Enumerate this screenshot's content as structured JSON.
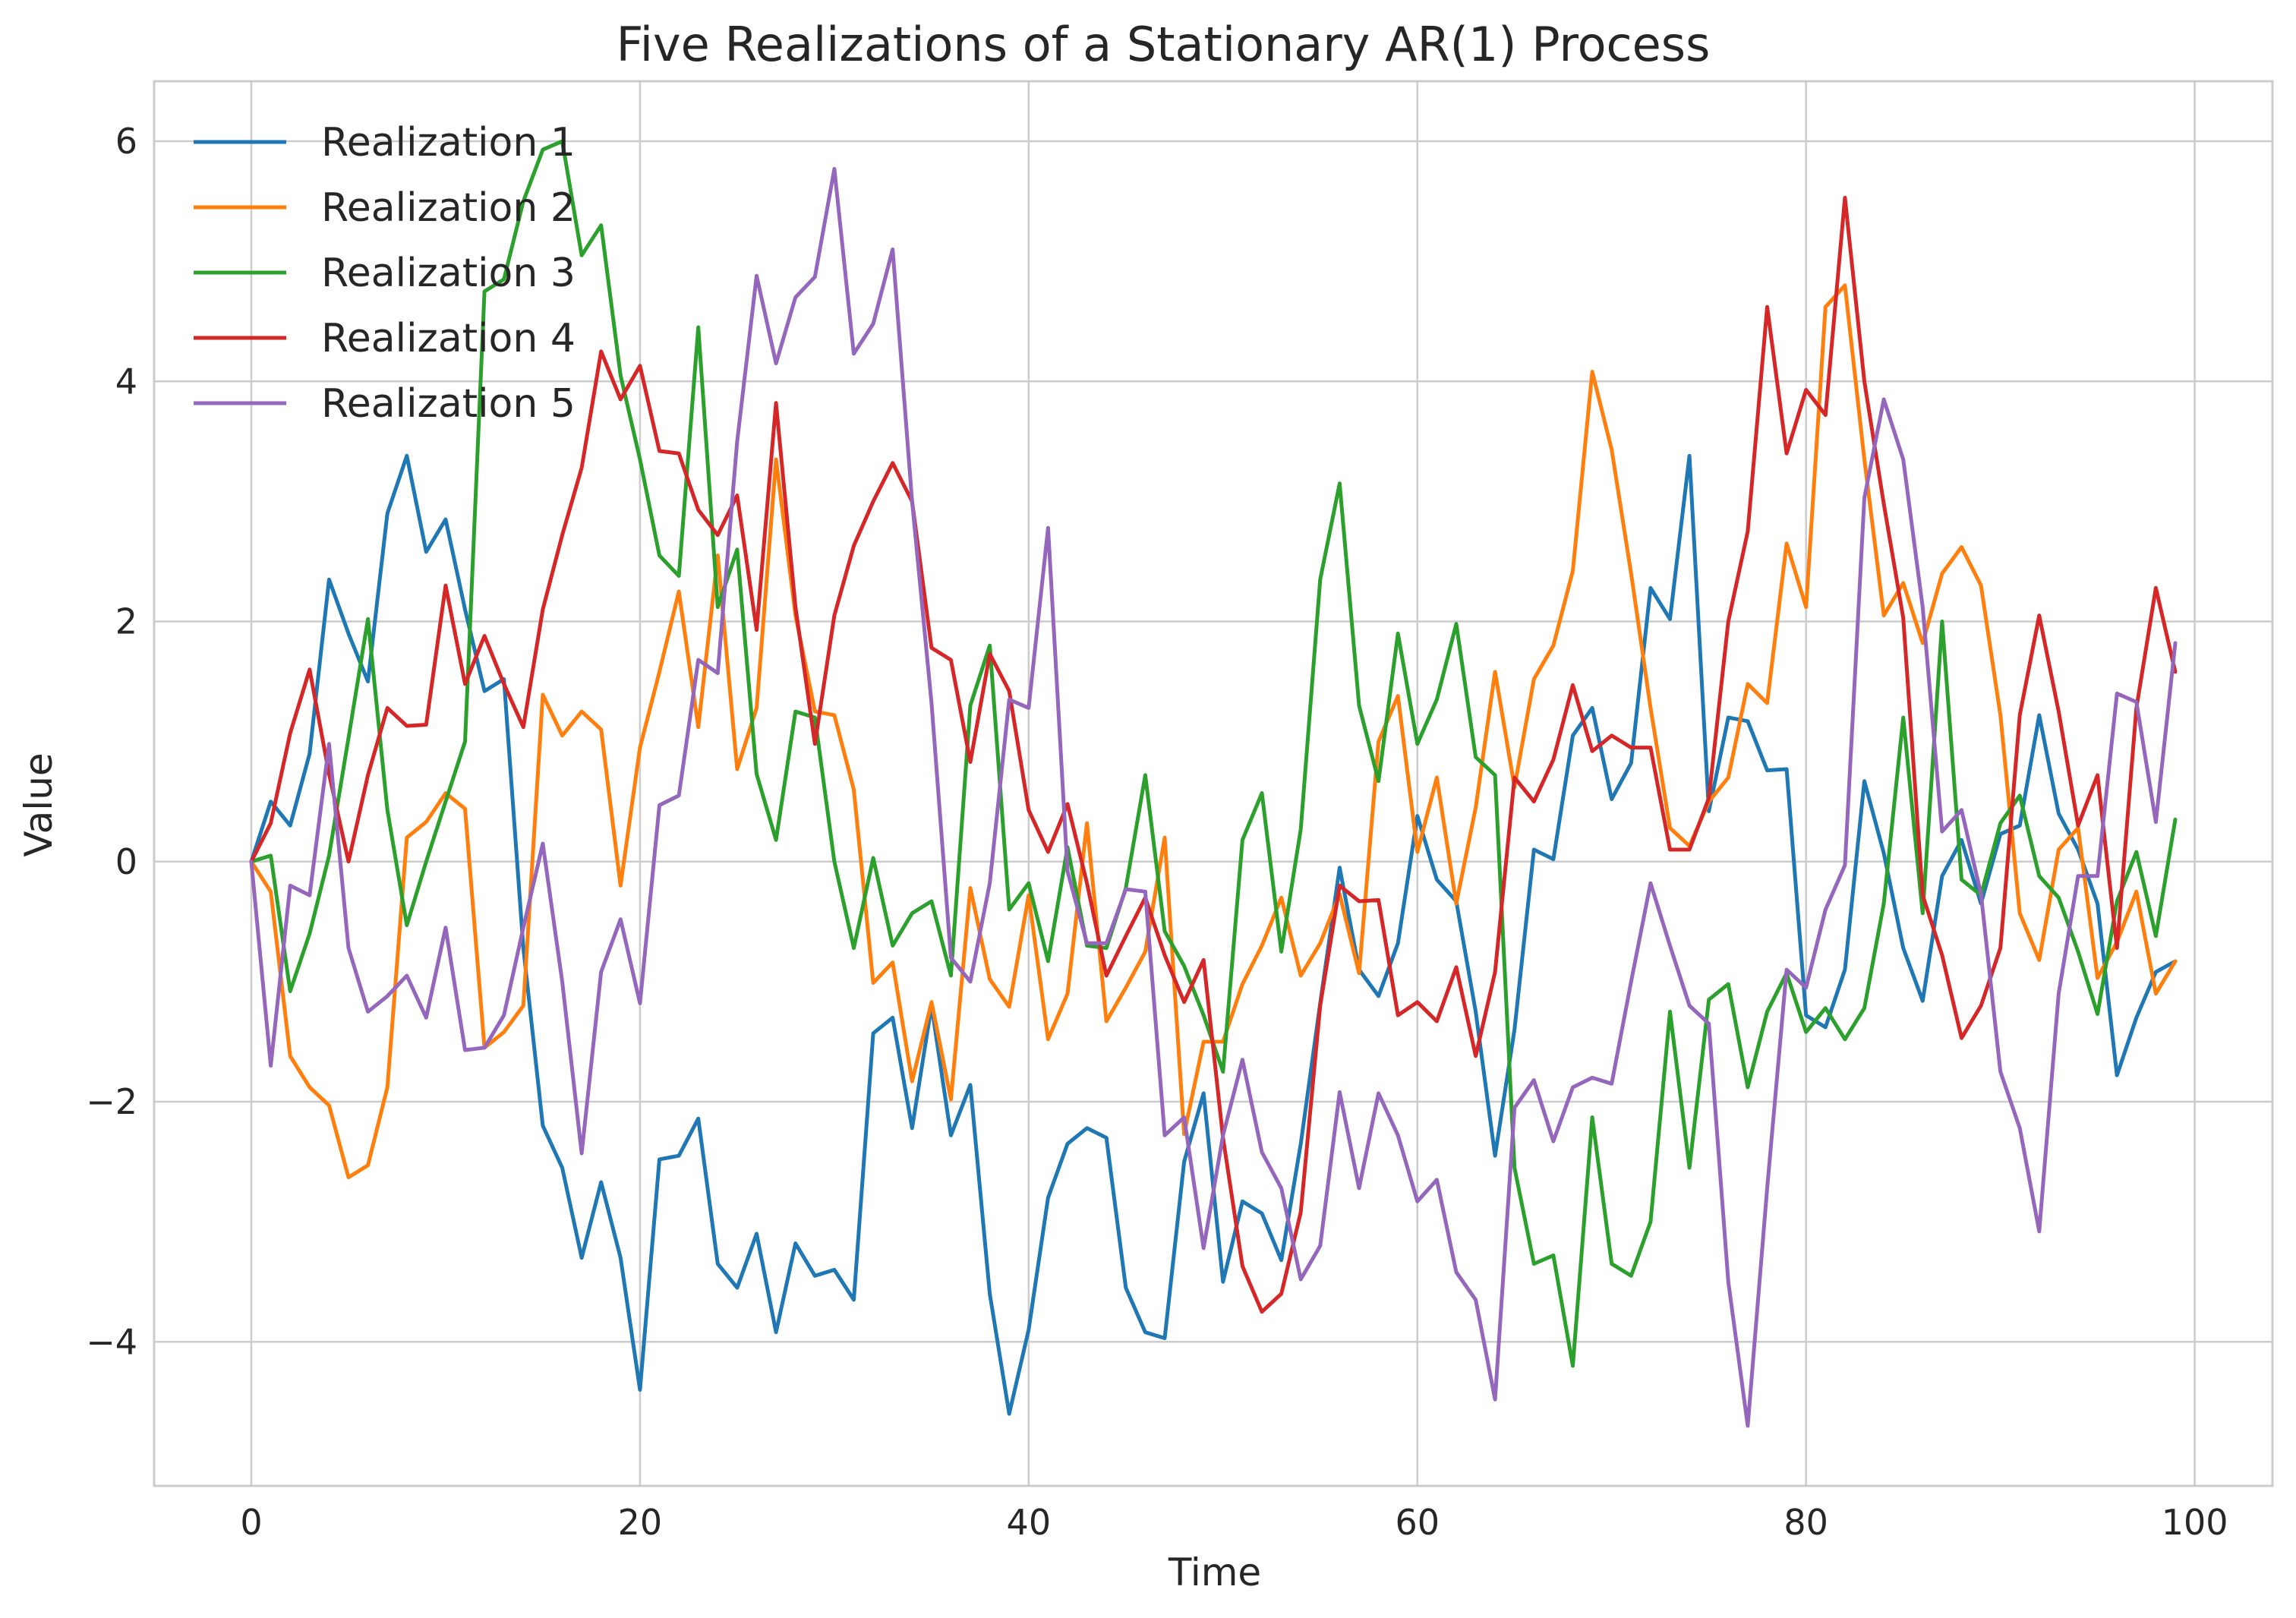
{
  "chart_data": {
    "type": "line",
    "title": "Five Realizations of a Stationary AR(1) Process",
    "xlabel": "Time",
    "ylabel": "Value",
    "xlim": [
      -5,
      104
    ],
    "ylim": [
      -5.2,
      6.5
    ],
    "xticks": [
      0,
      20,
      40,
      60,
      80,
      100
    ],
    "xtick_labels": [
      "0",
      "20",
      "40",
      "60",
      "80",
      "100"
    ],
    "yticks": [
      -4,
      -2,
      0,
      2,
      4,
      6
    ],
    "ytick_labels": [
      "−4",
      "−2",
      "0",
      "2",
      "4",
      "6"
    ],
    "grid": true,
    "legend_position": "top-left",
    "x": [
      0,
      1,
      2,
      3,
      4,
      5,
      6,
      7,
      8,
      9,
      10,
      11,
      12,
      13,
      14,
      15,
      16,
      17,
      18,
      19,
      20,
      21,
      22,
      23,
      24,
      25,
      26,
      27,
      28,
      29,
      30,
      31,
      32,
      33,
      34,
      35,
      36,
      37,
      38,
      39,
      40,
      41,
      42,
      43,
      44,
      45,
      46,
      47,
      48,
      49,
      50,
      51,
      52,
      53,
      54,
      55,
      56,
      57,
      58,
      59,
      60,
      61,
      62,
      63,
      64,
      65,
      66,
      67,
      68,
      69,
      70,
      71,
      72,
      73,
      74,
      75,
      76,
      77,
      78,
      79,
      80,
      81,
      82,
      83,
      84,
      85,
      86,
      87,
      88,
      89,
      90,
      91,
      92,
      93,
      94,
      95,
      96,
      97,
      98,
      99
    ],
    "series": [
      {
        "name": "Realization 1",
        "color": "#1f77b4",
        "values": [
          0,
          0.5,
          0.3,
          0.9,
          2.35,
          1.9,
          1.5,
          2.9,
          3.38,
          2.58,
          2.85,
          2.1,
          1.42,
          1.52,
          -0.72,
          -2.2,
          -2.55,
          -3.3,
          -2.67,
          -3.3,
          -4.4,
          -2.48,
          -2.45,
          -2.14,
          -3.35,
          -3.55,
          -3.1,
          -3.92,
          -3.18,
          -3.45,
          -3.4,
          -3.65,
          -1.43,
          -1.3,
          -2.22,
          -1.2,
          -2.28,
          -1.86,
          -3.6,
          -4.6,
          -3.9,
          -2.8,
          -2.35,
          -2.22,
          -2.3,
          -3.55,
          -3.92,
          -3.97,
          -2.5,
          -1.93,
          -3.5,
          -2.83,
          -2.93,
          -3.32,
          -2.35,
          -1.18,
          -0.05,
          -0.9,
          -1.12,
          -0.68,
          0.38,
          -0.15,
          -0.33,
          -1.25,
          -2.45,
          -1.4,
          0.1,
          0.02,
          1.05,
          1.28,
          0.52,
          0.82,
          2.28,
          2.02,
          3.38,
          0.42,
          1.2,
          1.17,
          0.76,
          0.77,
          -1.28,
          -1.38,
          -0.9,
          0.67,
          0.07,
          -0.72,
          -1.16,
          -0.12,
          0.18,
          -0.35,
          0.23,
          0.3,
          1.22,
          0.4,
          0.1,
          -0.35,
          -1.78,
          -1.3,
          -0.92,
          -0.83
        ]
      },
      {
        "name": "Realization 2",
        "color": "#ff7f0e",
        "values": [
          0,
          -0.25,
          -1.62,
          -1.88,
          -2.03,
          -2.63,
          -2.53,
          -1.88,
          0.2,
          0.33,
          0.57,
          0.44,
          -1.55,
          -1.42,
          -1.2,
          1.39,
          1.05,
          1.25,
          1.1,
          -0.2,
          0.95,
          1.58,
          2.25,
          1.12,
          2.55,
          0.77,
          1.28,
          3.35,
          2.05,
          1.25,
          1.22,
          0.6,
          -1.01,
          -0.84,
          -1.83,
          -1.17,
          -1.98,
          -0.22,
          -0.98,
          -1.21,
          -0.28,
          -1.48,
          -1.1,
          0.32,
          -1.33,
          -1.05,
          -0.75,
          0.2,
          -2.27,
          -1.5,
          -1.5,
          -1.02,
          -0.7,
          -0.3,
          -0.95,
          -0.68,
          -0.27,
          -0.93,
          1.0,
          1.38,
          0.08,
          0.7,
          -0.35,
          0.45,
          1.58,
          0.62,
          1.52,
          1.8,
          2.42,
          4.08,
          3.43,
          2.4,
          1.28,
          0.28,
          0.13,
          0.5,
          0.7,
          1.48,
          1.32,
          2.65,
          2.12,
          4.62,
          4.8,
          3.35,
          2.05,
          2.32,
          1.82,
          2.4,
          2.62,
          2.3,
          1.22,
          -0.43,
          -0.82,
          0.1,
          0.28,
          -0.97,
          -0.67,
          -0.25,
          -1.1,
          -0.83
        ]
      },
      {
        "name": "Realization 3",
        "color": "#2ca02c",
        "values": [
          0,
          0.05,
          -1.08,
          -0.6,
          0.05,
          1.03,
          2.02,
          0.43,
          -0.53,
          0.0,
          0.5,
          1.0,
          4.75,
          4.85,
          5.5,
          5.93,
          6.0,
          5.05,
          5.3,
          4.05,
          3.35,
          2.55,
          2.38,
          4.45,
          2.12,
          2.6,
          0.73,
          0.18,
          1.25,
          1.2,
          0.0,
          -0.72,
          0.03,
          -0.7,
          -0.43,
          -0.33,
          -0.95,
          1.3,
          1.8,
          -0.4,
          -0.18,
          -0.83,
          0.12,
          -0.7,
          -0.72,
          -0.22,
          0.72,
          -0.58,
          -0.87,
          -1.28,
          -1.75,
          0.18,
          0.57,
          -0.75,
          0.27,
          2.35,
          3.15,
          1.3,
          0.67,
          1.9,
          0.98,
          1.35,
          1.98,
          0.87,
          0.72,
          -2.55,
          -3.35,
          -3.28,
          -4.2,
          -2.13,
          -3.35,
          -3.45,
          -3.0,
          -1.25,
          -2.55,
          -1.15,
          -1.02,
          -1.88,
          -1.25,
          -0.93,
          -1.42,
          -1.22,
          -1.48,
          -1.22,
          -0.35,
          1.2,
          -0.43,
          2.0,
          -0.15,
          -0.28,
          0.32,
          0.55,
          -0.12,
          -0.3,
          -0.75,
          -1.27,
          -0.33,
          0.08,
          -0.62,
          0.35
        ]
      },
      {
        "name": "Realization 4",
        "color": "#d62728",
        "values": [
          0,
          0.32,
          1.07,
          1.6,
          0.73,
          0.0,
          0.72,
          1.28,
          1.13,
          1.14,
          2.3,
          1.48,
          1.88,
          1.48,
          1.12,
          2.1,
          2.72,
          3.28,
          4.25,
          3.85,
          4.13,
          3.42,
          3.4,
          2.93,
          2.72,
          3.05,
          1.93,
          3.82,
          2.12,
          0.98,
          2.05,
          2.63,
          3.0,
          3.32,
          3.0,
          1.78,
          1.68,
          0.83,
          1.73,
          1.42,
          0.43,
          0.08,
          0.48,
          -0.18,
          -0.95,
          -0.62,
          -0.3,
          -0.78,
          -1.17,
          -0.82,
          -2.3,
          -3.37,
          -3.75,
          -3.6,
          -2.92,
          -1.2,
          -0.2,
          -0.33,
          -0.32,
          -1.28,
          -1.17,
          -1.33,
          -0.88,
          -1.62,
          -0.92,
          0.7,
          0.5,
          0.85,
          1.47,
          0.92,
          1.05,
          0.95,
          0.95,
          0.1,
          0.1,
          0.53,
          2.0,
          2.75,
          4.62,
          3.4,
          3.93,
          3.72,
          5.53,
          4.0,
          2.98,
          2.03,
          -0.28,
          -0.78,
          -1.47,
          -1.2,
          -0.72,
          1.22,
          2.05,
          1.25,
          0.3,
          0.72,
          -0.72,
          1.28,
          2.28,
          1.58
        ]
      },
      {
        "name": "Realization 5",
        "color": "#9467bd",
        "values": [
          0,
          -1.7,
          -0.2,
          -0.28,
          0.98,
          -0.72,
          -1.25,
          -1.12,
          -0.95,
          -1.3,
          -0.55,
          -1.57,
          -1.55,
          -1.28,
          -0.55,
          0.15,
          -1.0,
          -2.43,
          -0.92,
          -0.48,
          -1.18,
          0.47,
          0.55,
          1.68,
          1.57,
          3.5,
          4.88,
          4.15,
          4.7,
          4.87,
          5.77,
          4.23,
          4.48,
          5.1,
          3.0,
          1.32,
          -0.8,
          -1.0,
          -0.18,
          1.35,
          1.28,
          2.78,
          -0.08,
          -0.68,
          -0.68,
          -0.23,
          -0.25,
          -2.28,
          -2.13,
          -3.22,
          -2.28,
          -1.65,
          -2.42,
          -2.72,
          -3.48,
          -3.2,
          -1.92,
          -2.72,
          -1.93,
          -2.28,
          -2.83,
          -2.65,
          -3.42,
          -3.65,
          -4.48,
          -2.05,
          -1.82,
          -2.33,
          -1.88,
          -1.8,
          -1.85,
          -1.0,
          -0.18,
          -0.7,
          -1.2,
          -1.35,
          -3.5,
          -4.7,
          -2.72,
          -0.9,
          -1.05,
          -0.4,
          -0.03,
          3.03,
          3.85,
          3.35,
          2.12,
          0.25,
          0.43,
          -0.27,
          -1.75,
          -2.22,
          -3.08,
          -1.1,
          -0.12,
          -0.12,
          1.4,
          1.33,
          0.33,
          1.82
        ]
      }
    ]
  }
}
